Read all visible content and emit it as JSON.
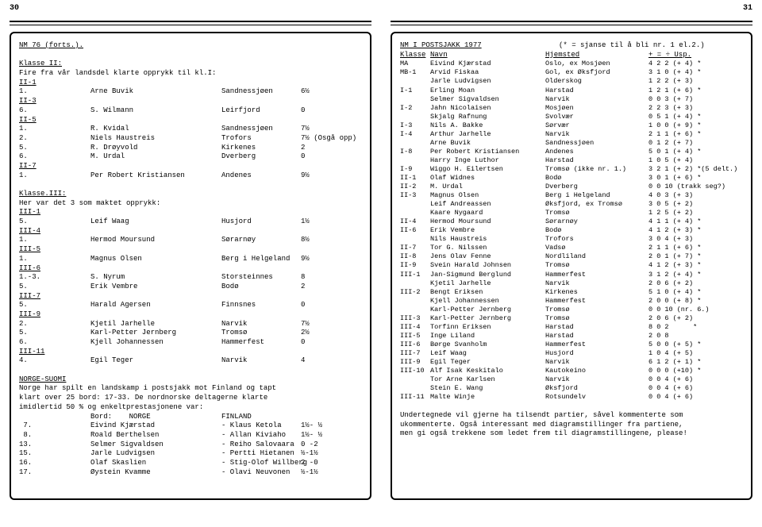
{
  "pagenum_left": "30",
  "pagenum_right": "31",
  "left": {
    "title": "NM 76 (forts.).",
    "klasseII": "Klasse II:",
    "klasseII_sub": "Fire fra vår landsdel klarte opprykk til kl.I:",
    "k2_rows": [
      [
        "II-1",
        "",
        "",
        ""
      ],
      [
        "1.",
        "Arne Buvik",
        "Sandnessjøen",
        "6½"
      ],
      [
        "II-3",
        "",
        "",
        ""
      ],
      [
        "6.",
        "S. Wilmann",
        "Leirfjord",
        "0"
      ],
      [
        "II-5",
        "",
        "",
        ""
      ],
      [
        "1.",
        "R. Kvidal",
        "Sandnessjøen",
        "7½"
      ],
      [
        "2.",
        "Niels Haustreis",
        "Trofors",
        "7½ (Osgå opp)"
      ],
      [
        "5.",
        "R. Drøyvold",
        "Kirkenes",
        "2"
      ],
      [
        "6.",
        "M. Urdal",
        "Dverberg",
        "0"
      ],
      [
        "II-7",
        "",
        "",
        ""
      ],
      [
        "1.",
        "Per Robert Kristiansen",
        "Andenes",
        "9½"
      ]
    ],
    "klasseIII": "Klasse.III:",
    "klasseIII_sub": "Her var det 3 som maktet opprykk:",
    "k3_rows": [
      [
        "III-1",
        "",
        "",
        ""
      ],
      [
        "5.",
        "Leif Waag",
        "Husjord",
        "1½"
      ],
      [
        "III-4",
        "",
        "",
        ""
      ],
      [
        "1.",
        "Hermod Moursund",
        "Sørarnøy",
        "8½"
      ],
      [
        "III-5",
        "",
        "",
        ""
      ],
      [
        "1.",
        "Magnus Olsen",
        "Berg i Helgeland",
        "9½"
      ],
      [
        "III-6",
        "",
        "",
        ""
      ],
      [
        "1.-3.",
        "S. Nyrum",
        "Storsteinnes",
        "8"
      ],
      [
        "5.",
        "Erik Vembre",
        "Bodø",
        "2"
      ],
      [
        "III-7",
        "",
        "",
        ""
      ],
      [
        "5.",
        "Harald Agersen",
        "Finnsnes",
        "0"
      ],
      [
        "III-9",
        "",
        "",
        ""
      ],
      [
        "2.",
        "Kjetil Jarhelle",
        "Narvik",
        "7½"
      ],
      [
        "5.",
        "Karl-Petter Jernberg",
        "Tromsø",
        "2½"
      ],
      [
        "6.",
        "Kjell Johannessen",
        "Hammerfest",
        "0"
      ],
      [
        "III-11",
        "",
        "",
        ""
      ],
      [
        "4.",
        "Egil Teger",
        "Narvik",
        "4"
      ]
    ],
    "norSuo": "NORGE-SUOMI",
    "norSuo_txt1": "Norge har spilt en landskamp i postsjakk mot Finland og tapt",
    "norSuo_txt2": "klart over 25 bord: 17-33.  De nordnorske deltagerne klarte",
    "norSuo_txt3": "imidlertid 50 % og enkeltprestasjonene var:",
    "bord_lbl_l": "Bord:    NORGE",
    "bord_lbl_r": "FINLAND",
    "bord_rows": [
      [
        " 7.",
        "Eivind Kjærstad",
        "- Klaus Ketola",
        "1½- ½"
      ],
      [
        " 8.",
        "Roald Berthelsen",
        "- Allan Kiviaho",
        "1½- ½"
      ],
      [
        "13.",
        "Selmer Sigvaldsen",
        "- Reiho Salovaara",
        "0 -2"
      ],
      [
        "15.",
        "Jarle Ludvigsen",
        "- Pertti Hietanen",
        "½-1½"
      ],
      [
        "16.",
        "Olaf Skaslien",
        "- Stig-Olof Willberg",
        "2 -0"
      ],
      [
        "17.",
        "Øystein Kvamme",
        "- Olavi Neuvonen",
        "½-1½"
      ]
    ]
  },
  "right": {
    "title": "NM I POSTSJAKK 1977",
    "title_note": "(* = sjanse til å bli nr. 1 el.2.)",
    "hdr_kl": "Klasse",
    "hdr_navn": "Navn",
    "hdr_hj": "Hjemsted",
    "hdr_sc": "+ = ÷ Usp.",
    "rows": [
      [
        "MA",
        "Eivind Kjærstad",
        "Oslo, ex Mosjøen",
        "4 2 2 (+ 4) *"
      ],
      [
        "MB-1",
        "Arvid Fiskaa",
        "Gol, ex Øksfjord",
        "3 1 0 (+ 4) *"
      ],
      [
        "",
        "Jarle Ludvigsen",
        "Olderskog",
        "1 2 2 (+ 3)"
      ],
      [
        "I-1",
        "Erling Moan",
        "Harstad",
        "1 2 1 (+ 6) *"
      ],
      [
        "",
        "Selmer Sigvaldsen",
        "Narvik",
        "0 0 3 (+ 7)"
      ],
      [
        "I-2",
        "Jahn Nicolaisen",
        "Mosjøen",
        "2 2 3 (+ 3)"
      ],
      [
        "",
        "Skjalg Rafnung",
        "Svolvær",
        "0 5 1 (+ 4) *"
      ],
      [
        "I-3",
        "Nils A. Bakke",
        "Sørvær",
        "1 0 0 (+ 9) *"
      ],
      [
        "I-4",
        "Arthur Jarhelle",
        "Narvik",
        "2 1 1 (+ 6) *"
      ],
      [
        "",
        "Arne Buvik",
        "Sandnessjøen",
        "0 1 2 (+ 7)"
      ],
      [
        "I-8",
        "Per Robert Kristiansen",
        "Andenes",
        "5 0 1 (+ 4) *"
      ],
      [
        "",
        "Harry Inge Luthor",
        "Harstad",
        "1 0 5 (+ 4)"
      ],
      [
        "I-9",
        "Wiggo H. Eilertsen",
        "Tromsø (ikke nr. 1.)",
        "3 2 1 (+ 2) *(5 delt.)"
      ],
      [
        "II-1",
        "Olaf Widnes",
        "Bodø",
        "3 0 1 (+ 6) *"
      ],
      [
        "II-2",
        "M. Urdal",
        "Dverberg",
        "0 0 10 (trakk seg?)"
      ],
      [
        "II-3",
        "Magnus Olsen",
        "Berg i Helgeland",
        "4 0 3 (+ 3)"
      ],
      [
        "",
        "Leif Andreassen",
        "Øksfjord, ex Tromsø",
        "3 0 5 (+ 2)"
      ],
      [
        "",
        "Kaare Nygaard",
        "Tromsø",
        "1 2 5 (+ 2)"
      ],
      [
        "II-4",
        "Hermod Moursund",
        "Sørarnøy",
        "4 1 1 (+ 4) *"
      ],
      [
        "II-6",
        "Erik Vembre",
        "Bodø",
        "4 1 2 (+ 3) *"
      ],
      [
        "",
        "Nils Haustreis",
        "Trofors",
        "3 0 4 (+ 3)"
      ],
      [
        "II-7",
        "Tor G. Nilssen",
        "Vadsø",
        "2 1 1 (+ 6) *"
      ],
      [
        "II-8",
        "Jens Olav Fenne",
        "Nordliland",
        "2 0 1 (+ 7) *"
      ],
      [
        "II-9",
        "Svein Harald Johnsen",
        "Tromsø",
        "4 1 2 (+ 3) *"
      ],
      [
        "III-1",
        "Jan-Sigmund Berglund",
        "Hammerfest",
        "3 1 2 (+ 4) *"
      ],
      [
        "",
        "Kjetil Jarhelle",
        "Narvik",
        "2 0 6 (+ 2)"
      ],
      [
        "III-2",
        "Bengt Eriksen",
        "Kirkenes",
        "5 1 0 (+ 4) *"
      ],
      [
        "",
        "Kjell Johannessen",
        "Hammerfest",
        "2 0 0 (+ 8) *"
      ],
      [
        "",
        "Karl-Petter Jernberg",
        "Tromsø",
        "0 0 10 (nr. 6.)"
      ],
      [
        "III-3",
        "Karl-Petter Jernberg",
        "Tromsø",
        "2 0 6 (+ 2)"
      ],
      [
        "III-4",
        "Torfinn Eriksen",
        "Harstad",
        "8 0 2      *"
      ],
      [
        "III-5",
        "Inge Liland",
        "Harstad",
        "2 0 8"
      ],
      [
        "III-6",
        "Børge Svanholm",
        "Hammerfest",
        "5 0 0 (+ 5) *"
      ],
      [
        "III-7",
        "Leif Waag",
        "Husjord",
        "1 0 4 (+ 5)"
      ],
      [
        "III-9",
        "Egil Teger",
        "Narvik",
        "6 1 2 (+ 1) *"
      ],
      [
        "III-10",
        "Alf Isak Keskitalo",
        "Kautokeino",
        "0 0 0 (+10) *"
      ],
      [
        "",
        "Tor Arne Karlsen",
        "Narvik",
        "0 0 4 (+ 6)"
      ],
      [
        "",
        "Stein E. Wang",
        "Øksfjord",
        "0 0 4 (+ 6)"
      ],
      [
        "III-11",
        "Malte Winje",
        "Rotsundelv",
        "0 0 4 (+ 6)"
      ]
    ],
    "foot1": "Undertegnede vil gjerne ha tilsendt partier, såvel kommenterte som",
    "foot2": "ukommenterte.  Også interessant med diagramstillinger fra partiene,",
    "foot3": "men gi også trekkene som ledet frem til diagramstillingene, please!"
  }
}
